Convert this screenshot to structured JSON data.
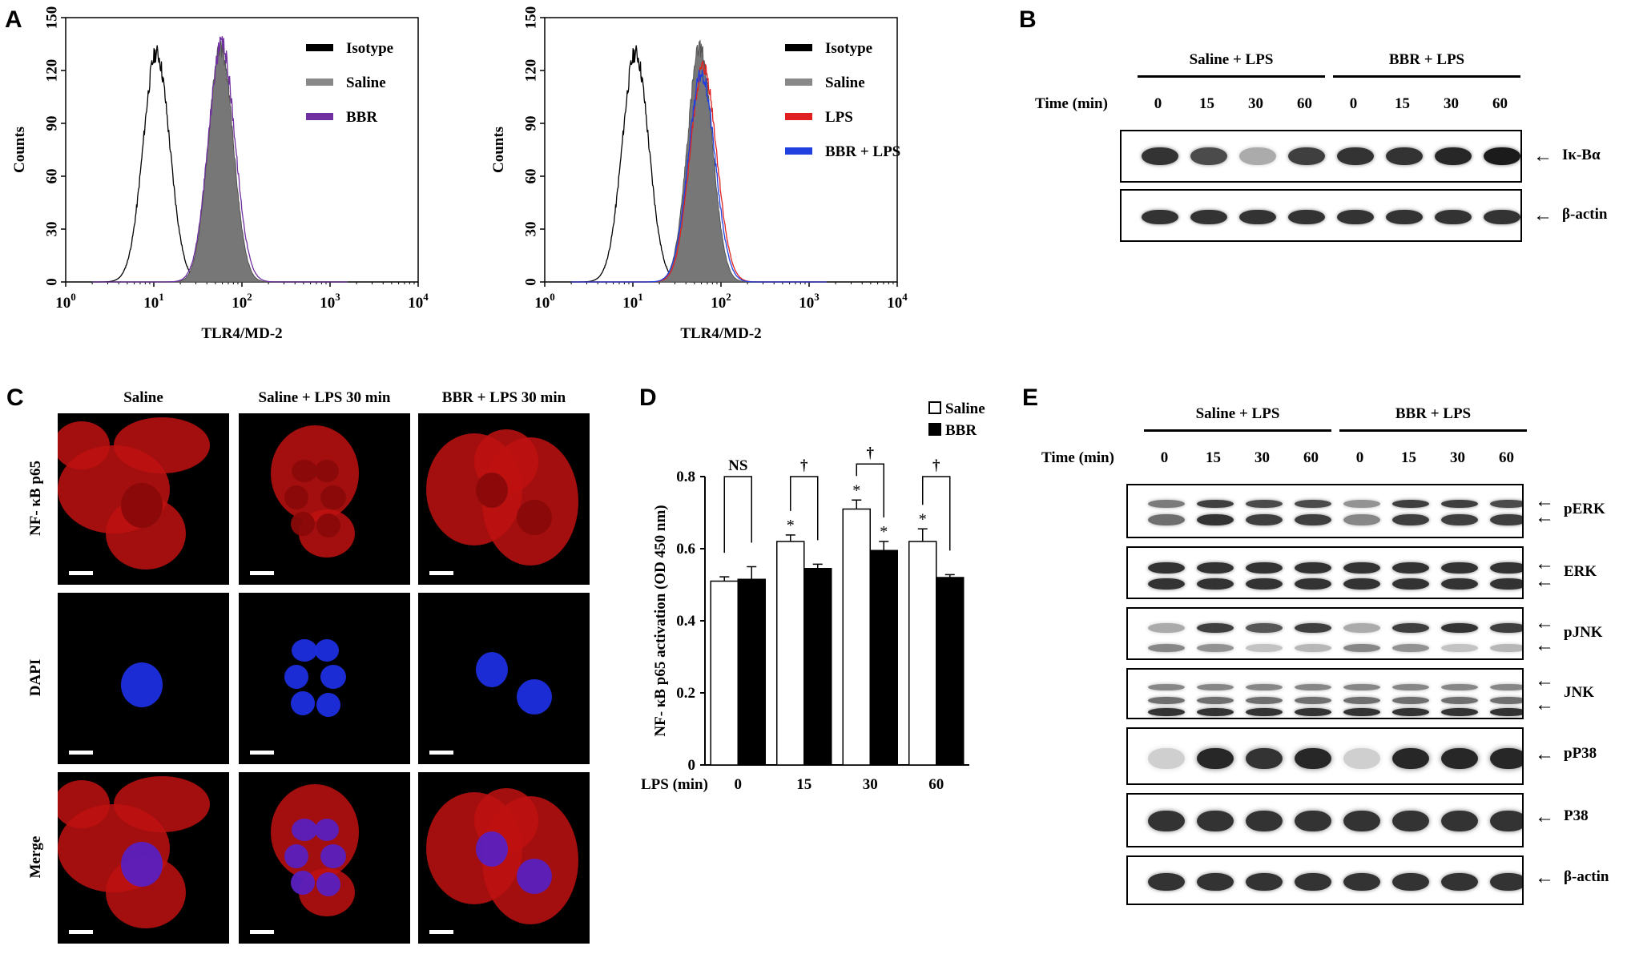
{
  "panels": {
    "A": "A",
    "B": "B",
    "C": "C",
    "D": "D",
    "E": "E"
  },
  "panelA": {
    "hist1": {
      "legend": [
        "Isotype",
        "Saline",
        "BBR"
      ],
      "legend_colors": [
        "#000000",
        "#888888",
        "#7030a0"
      ]
    },
    "hist2": {
      "legend": [
        "Isotype",
        "Saline",
        "LPS",
        "BBR + LPS"
      ],
      "legend_colors": [
        "#000000",
        "#888888",
        "#e02020",
        "#2040e0"
      ]
    },
    "xlabel": "TLR4/MD-2",
    "ylabel": "Counts",
    "yticks": [
      "0",
      "30",
      "60",
      "90",
      "120",
      "150"
    ],
    "xticks_base": "10",
    "xticks_exp": [
      "0",
      "1",
      "2",
      "3",
      "4"
    ]
  },
  "panelB": {
    "groups": [
      "Saline + LPS",
      "BBR + LPS"
    ],
    "time_label": "Time (min)",
    "times": [
      "0",
      "15",
      "30",
      "60",
      "0",
      "15",
      "30",
      "60"
    ],
    "rows": [
      {
        "label": "Iκ-Bα",
        "intensity": [
          0.85,
          0.75,
          0.35,
          0.8,
          0.85,
          0.85,
          0.9,
          0.95
        ]
      },
      {
        "label": "β-actin",
        "intensity": [
          0.85,
          0.85,
          0.85,
          0.85,
          0.85,
          0.85,
          0.85,
          0.85
        ]
      }
    ]
  },
  "panelC": {
    "columns": [
      "Saline",
      "Saline + LPS 30 min",
      "BBR + LPS 30 min"
    ],
    "rows": [
      "NF- κB p65",
      "DAPI",
      "Merge"
    ]
  },
  "chart_data": {
    "type": "bar",
    "categories": [
      "0",
      "15",
      "30",
      "60"
    ],
    "xlabel": "LPS (min)",
    "ylabel": "NF- κB p65 activation (OD 450 nm)",
    "ylim": [
      0,
      0.8
    ],
    "yticks": [
      "0",
      "0.2",
      "0.4",
      "0.6",
      "0.8"
    ],
    "series": [
      {
        "name": "Saline",
        "values": [
          0.51,
          0.62,
          0.71,
          0.62
        ],
        "errors": [
          0.012,
          0.018,
          0.025,
          0.035
        ],
        "color": "#ffffff"
      },
      {
        "name": "BBR",
        "values": [
          0.515,
          0.545,
          0.595,
          0.52
        ],
        "errors": [
          0.035,
          0.012,
          0.025,
          0.008
        ],
        "color": "#000000"
      }
    ],
    "significance": [
      "NS",
      "†",
      "†",
      "†"
    ],
    "stars_saline": [
      "",
      "*",
      "*",
      "*"
    ],
    "stars_bbr": [
      "",
      "",
      "*",
      ""
    ]
  },
  "panelE": {
    "groups": [
      "Saline + LPS",
      "BBR + LPS"
    ],
    "time_label": "Time (min)",
    "times": [
      "0",
      "15",
      "30",
      "60",
      "0",
      "15",
      "30",
      "60"
    ],
    "rows": [
      {
        "label": "pERK",
        "arrows": 2
      },
      {
        "label": "ERK",
        "arrows": 2
      },
      {
        "label": "pJNK",
        "arrows": 2
      },
      {
        "label": "JNK",
        "arrows": 2
      },
      {
        "label": "pP38",
        "arrows": 1
      },
      {
        "label": "P38",
        "arrows": 1
      },
      {
        "label": "β-actin",
        "arrows": 1
      }
    ]
  }
}
